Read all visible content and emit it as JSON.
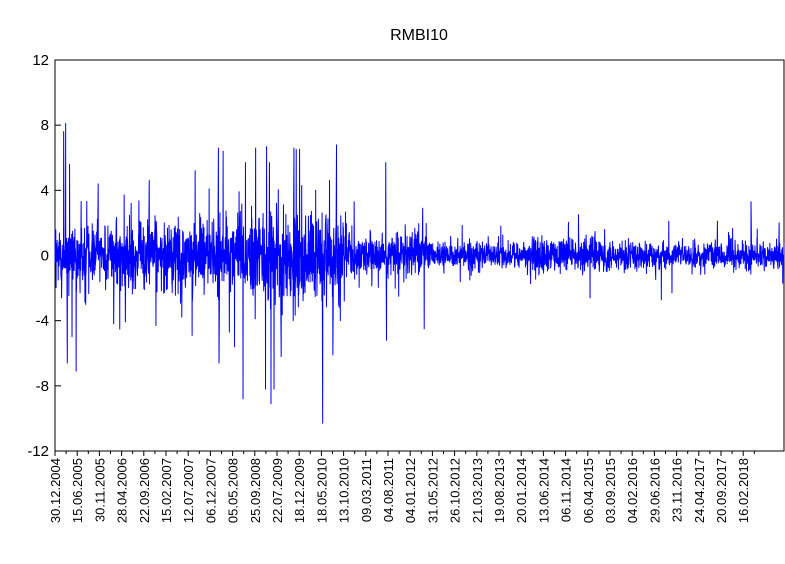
{
  "chart_data": {
    "type": "line",
    "title": "RMBI10",
    "xlabel": "",
    "ylabel": "",
    "ylim": [
      -12,
      12
    ],
    "yticks": [
      12,
      8,
      4,
      0,
      -4,
      -8,
      -12
    ],
    "ytick_labels": [
      "12",
      "8",
      "4",
      "0",
      "-4",
      "-8",
      "-12"
    ],
    "x_start": "30.12.2004",
    "x_end": "16.02.2018",
    "xtick_labels": [
      "30.12.2004",
      "15.06.2005",
      "30.11.2005",
      "28.04.2006",
      "22.09.2006",
      "15.02.2007",
      "12.07.2007",
      "06.12.2007",
      "05.05.2008",
      "25.09.2008",
      "22.07.2009",
      "18.12.2009",
      "18.05.2010",
      "13.10.2010",
      "09.03.2011",
      "04.08.2011",
      "04.01.2012",
      "31.05.2012",
      "26.10.2012",
      "21.03.2013",
      "19.08.2013",
      "20.01.2014",
      "13.06.2014",
      "06.11.2014",
      "06.04.2015",
      "03.09.2015",
      "04.02.2016",
      "29.06.2016",
      "23.11.2016",
      "24.04.2017",
      "20.09.2017",
      "16.02.2018"
    ],
    "grid": false,
    "legend": "none",
    "series": [
      {
        "color": "#0000ff",
        "spikes": [
          {
            "x": "25.02.2005",
            "y": 7.6
          },
          {
            "x": "10.03.2005",
            "y": 8.1
          },
          {
            "x": "20.03.2005",
            "y": -6.6
          },
          {
            "x": "05.04.2005",
            "y": 5.6
          },
          {
            "x": "18.05.2005",
            "y": -7.1
          },
          {
            "x": "20.07.2005",
            "y": -3.0
          },
          {
            "x": "10.10.2005",
            "y": 4.4
          },
          {
            "x": "20.01.2006",
            "y": -4.2
          },
          {
            "x": "15.05.2006",
            "y": 3.2
          },
          {
            "x": "10.09.2006",
            "y": 4.6
          },
          {
            "x": "25.10.2006",
            "y": -4.3
          },
          {
            "x": "20.06.2007",
            "y": -4.9
          },
          {
            "x": "10.07.2007",
            "y": 5.2
          },
          {
            "x": "10.10.2007",
            "y": 4.1
          },
          {
            "x": "10.12.2007",
            "y": 6.6
          },
          {
            "x": "15.12.2007",
            "y": -6.6
          },
          {
            "x": "10.01.2008",
            "y": 6.4
          },
          {
            "x": "20.02.2008",
            "y": -4.7
          },
          {
            "x": "25.03.2008",
            "y": -5.6
          },
          {
            "x": "20.05.2008",
            "y": -8.8
          },
          {
            "x": "05.06.2008",
            "y": 5.7
          },
          {
            "x": "10.08.2008",
            "y": 6.6
          },
          {
            "x": "15.10.2008",
            "y": -8.2
          },
          {
            "x": "10.11.2008",
            "y": 5.7
          },
          {
            "x": "20.11.2008",
            "y": -9.1
          },
          {
            "x": "10.12.2008",
            "y": -8.2
          },
          {
            "x": "25.01.2009",
            "y": -6.2
          },
          {
            "x": "15.04.2009",
            "y": -4.0
          },
          {
            "x": "20.04.2009",
            "y": 6.6
          },
          {
            "x": "05.05.2009",
            "y": 6.5
          },
          {
            "x": "10.06.2009",
            "y": 4.3
          },
          {
            "x": "10.09.2009",
            "y": 4.0
          },
          {
            "x": "25.10.2009",
            "y": -10.3
          },
          {
            "x": "10.12.2009",
            "y": 4.6
          },
          {
            "x": "01.01.2010",
            "y": -6.1
          },
          {
            "x": "20.02.2010",
            "y": -4.0
          },
          {
            "x": "15.12.2010",
            "y": 5.7
          },
          {
            "x": "20.12.2010",
            "y": -5.2
          },
          {
            "x": "10.03.2011",
            "y": -2.5
          },
          {
            "x": "15.08.2011",
            "y": 2.9
          },
          {
            "x": "25.08.2011",
            "y": -4.5
          },
          {
            "x": "20.06.2012",
            "y": -1.5
          },
          {
            "x": "10.01.2013",
            "y": 1.8
          },
          {
            "x": "05.06.2014",
            "y": 2.5
          },
          {
            "x": "20.08.2014",
            "y": -2.6
          },
          {
            "x": "20.01.2016",
            "y": 2.1
          },
          {
            "x": "10.02.2016",
            "y": -2.3
          },
          {
            "x": "05.12.2016",
            "y": 2.1
          },
          {
            "x": "15.07.2017",
            "y": 3.3
          },
          {
            "x": "15.01.2018",
            "y": 2.0
          },
          {
            "x": "08.02.2018",
            "y": -1.7
          }
        ],
        "noise_profile": [
          {
            "from": "30.12.2004",
            "to": "31.12.2006",
            "amplitude": 1.7
          },
          {
            "from": "01.01.2007",
            "to": "30.06.2008",
            "amplitude": 2.0
          },
          {
            "from": "01.07.2008",
            "to": "31.03.2010",
            "amplitude": 2.6
          },
          {
            "from": "01.04.2010",
            "to": "30.09.2011",
            "amplitude": 1.2
          },
          {
            "from": "01.10.2011",
            "to": "30.06.2013",
            "amplitude": 0.7
          },
          {
            "from": "01.07.2013",
            "to": "31.12.2014",
            "amplitude": 0.95
          },
          {
            "from": "01.01.2015",
            "to": "16.02.2018",
            "amplitude": 0.75
          }
        ]
      }
    ]
  }
}
